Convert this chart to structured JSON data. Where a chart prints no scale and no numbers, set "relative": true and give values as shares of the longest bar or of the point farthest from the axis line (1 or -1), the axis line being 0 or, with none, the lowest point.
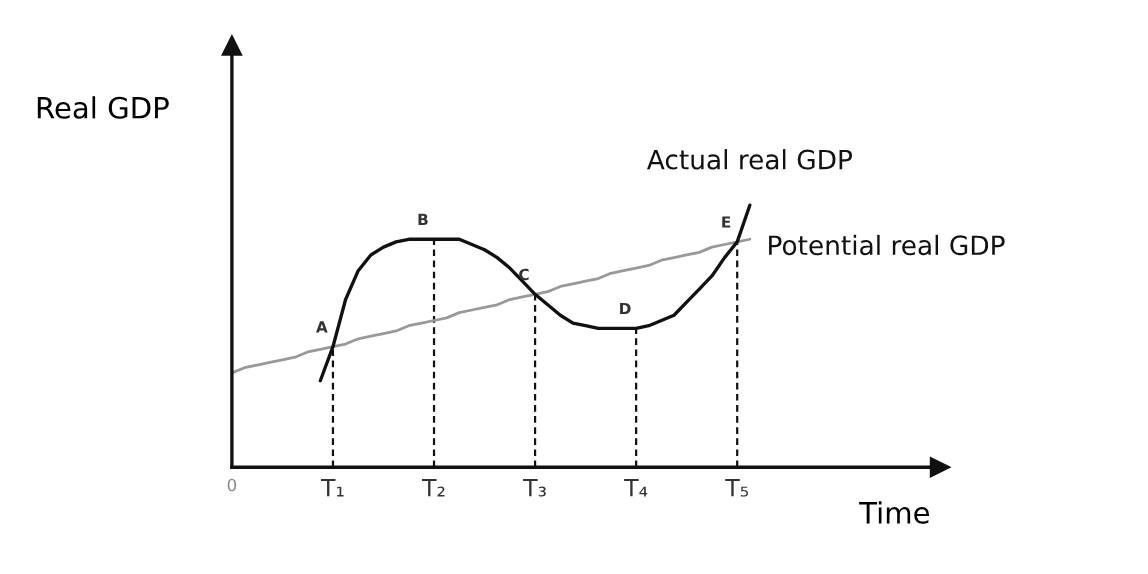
{
  "chart_data": {
    "type": "line",
    "relative": true,
    "xlabel": "Time",
    "ylabel": "Real GDP",
    "categories": [
      "0",
      null,
      null,
      null,
      null,
      null,
      null,
      null,
      "T₁",
      null,
      null,
      null,
      null,
      null,
      null,
      null,
      "T₂",
      null,
      null,
      null,
      null,
      null,
      null,
      null,
      "T₃",
      null,
      null,
      null,
      null,
      null,
      null,
      null,
      "T₄",
      null,
      null,
      null,
      null,
      null,
      null,
      null,
      "T₅",
      null
    ],
    "series": [
      {
        "name": "Actual real GDP",
        "color": "#111111",
        "values": [
          null,
          null,
          null,
          null,
          null,
          null,
          null,
          0.33,
          0.46,
          0.64,
          0.75,
          0.81,
          0.84,
          0.86,
          0.87,
          0.87,
          0.87,
          0.87,
          0.87,
          0.85,
          0.83,
          0.8,
          0.76,
          0.71,
          0.66,
          0.62,
          0.58,
          0.55,
          0.54,
          0.53,
          0.53,
          0.53,
          0.53,
          0.54,
          0.56,
          0.58,
          0.63,
          0.68,
          0.73,
          0.8,
          0.86,
          1.0
        ]
      },
      {
        "name": "Potential real GDP",
        "color": "#999999",
        "values": [
          0.36,
          0.38,
          0.39,
          0.4,
          0.41,
          0.42,
          0.44,
          0.45,
          0.46,
          0.47,
          0.49,
          0.5,
          0.51,
          0.52,
          0.54,
          0.55,
          0.56,
          0.57,
          0.59,
          0.6,
          0.61,
          0.62,
          0.64,
          0.65,
          0.66,
          0.67,
          0.69,
          0.7,
          0.71,
          0.72,
          0.74,
          0.75,
          0.76,
          0.77,
          0.79,
          0.8,
          0.81,
          0.82,
          0.84,
          0.85,
          0.86,
          0.87
        ]
      }
    ],
    "annotations": [
      {
        "text": "A",
        "x": "T₁",
        "y": 0.46
      },
      {
        "text": "B",
        "x": "T₂",
        "y": 0.87
      },
      {
        "text": "C",
        "x": "T₃",
        "y": 0.66
      },
      {
        "text": "D",
        "x": "T₄",
        "y": 0.53
      },
      {
        "text": "E",
        "x": "T₅",
        "y": 0.86
      }
    ],
    "legend": false,
    "marker": "none",
    "line_style": "solid"
  }
}
